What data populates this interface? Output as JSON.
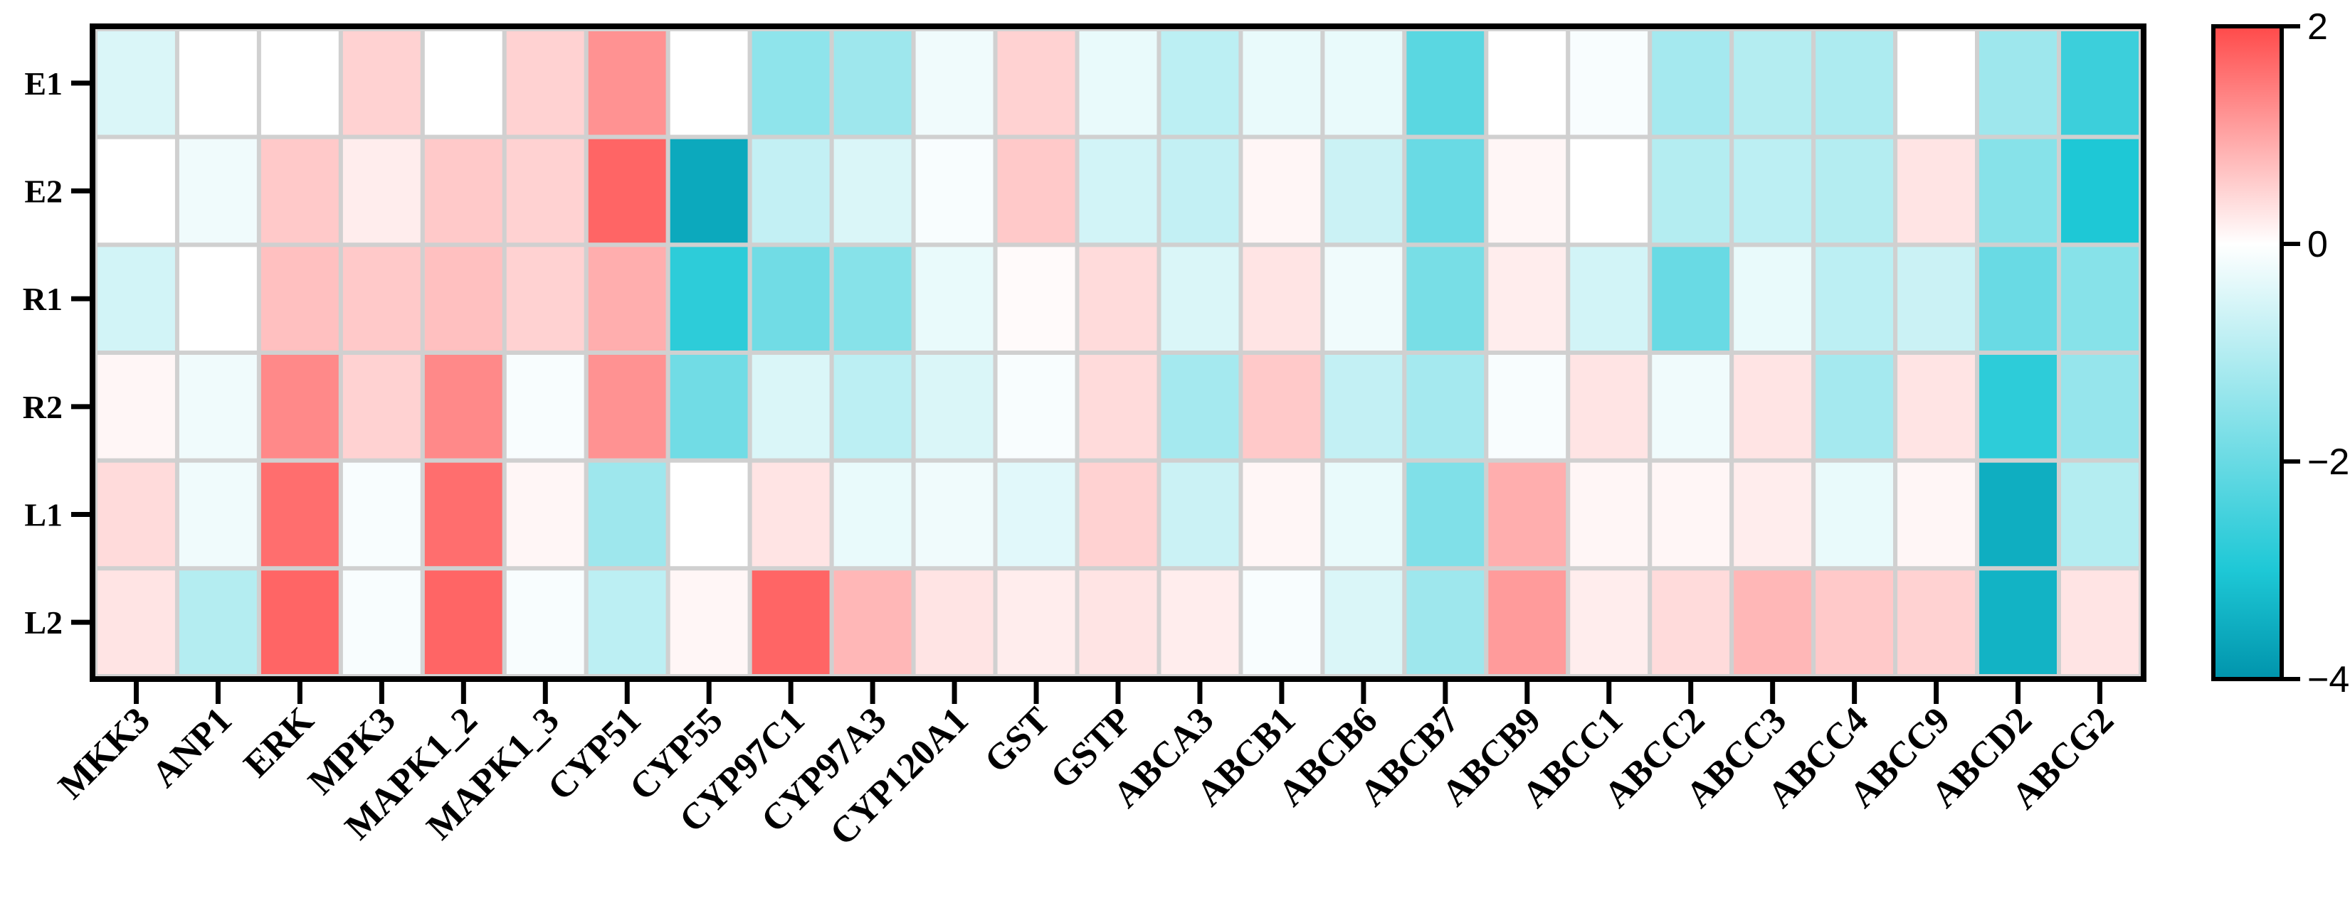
{
  "chart_data": {
    "type": "heatmap",
    "title": "",
    "xlabel": "",
    "ylabel": "",
    "columns": [
      "MKK3",
      "ANP1",
      "ERK",
      "MPK3",
      "MAPK1_2",
      "MAPK1_3",
      "CYP51",
      "CYP55",
      "CYP97C1",
      "CYP97A3",
      "CYP120A1",
      "GST",
      "GSTP",
      "ABCA3",
      "ABCB1",
      "ABCB6",
      "ABCB7",
      "ABCB9",
      "ABCC1",
      "ABCC2",
      "ABCC3",
      "ABCC4",
      "ABCC9",
      "ABCD2",
      "ABCG2"
    ],
    "rows": [
      "E1",
      "E2",
      "R1",
      "R2",
      "L1",
      "L2"
    ],
    "values": [
      [
        -0.5,
        0.0,
        0.0,
        0.5,
        0.0,
        0.5,
        1.2,
        0.0,
        -1.5,
        -1.3,
        -0.2,
        0.5,
        -0.3,
        -0.9,
        -0.3,
        -0.3,
        -2.2,
        0.0,
        -0.1,
        -1.2,
        -1.0,
        -1.1,
        0.0,
        -1.3,
        -2.6
      ],
      [
        0.0,
        -0.2,
        0.6,
        0.2,
        0.6,
        0.5,
        1.7,
        -3.6,
        -0.8,
        -0.5,
        -0.1,
        0.6,
        -0.6,
        -0.8,
        0.1,
        -0.7,
        -2.0,
        0.1,
        0.0,
        -1.0,
        -0.9,
        -1.0,
        0.3,
        -1.6,
        -3.0
      ],
      [
        -0.6,
        0.0,
        0.7,
        0.6,
        0.7,
        0.5,
        0.9,
        -2.8,
        -1.9,
        -1.6,
        -0.3,
        0.05,
        0.4,
        -0.5,
        0.3,
        -0.2,
        -1.8,
        0.2,
        -0.6,
        -2.0,
        -0.3,
        -0.9,
        -0.7,
        -2.0,
        -1.6
      ],
      [
        0.1,
        -0.2,
        1.3,
        0.5,
        1.3,
        -0.1,
        1.2,
        -1.9,
        -0.5,
        -0.9,
        -0.5,
        -0.1,
        0.4,
        -1.2,
        0.6,
        -0.8,
        -1.2,
        -0.1,
        0.3,
        -0.2,
        0.3,
        -1.2,
        0.3,
        -2.8,
        -1.4
      ],
      [
        0.4,
        -0.2,
        1.6,
        -0.1,
        1.6,
        0.1,
        -1.3,
        0.0,
        0.3,
        -0.3,
        -0.2,
        -0.4,
        0.5,
        -0.7,
        0.1,
        -0.3,
        -1.7,
        0.9,
        0.1,
        0.1,
        0.2,
        -0.3,
        0.1,
        -3.5,
        -1.0
      ],
      [
        0.3,
        -1.0,
        1.7,
        -0.1,
        1.7,
        -0.1,
        -0.9,
        0.1,
        1.7,
        0.8,
        0.3,
        0.2,
        0.3,
        0.2,
        -0.1,
        -0.5,
        -1.3,
        1.1,
        0.2,
        0.4,
        0.8,
        0.6,
        0.5,
        -3.4,
        0.3
      ]
    ],
    "colorbar": {
      "min": -4,
      "max": 2,
      "ticks": [
        2,
        0,
        -2,
        -4
      ],
      "tick_labels": [
        "2",
        "0",
        "−2",
        "−4"
      ],
      "colors": {
        "high": "#ff4a4a",
        "mid": "#ffffff",
        "low_mid": "#1ec8d6",
        "low": "#0094ac"
      }
    }
  }
}
